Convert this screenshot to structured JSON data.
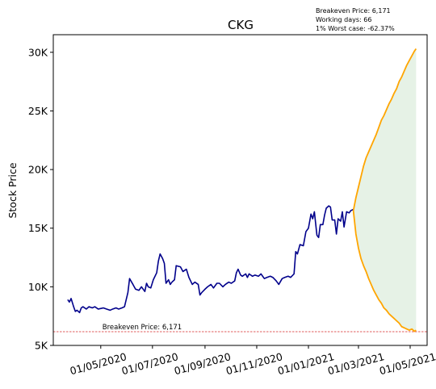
{
  "chart_data": {
    "type": "line",
    "title": "CKG",
    "xlabel": "",
    "ylabel": "Stock Price",
    "ylim": [
      5000,
      31500
    ],
    "y_ticks": [
      5000,
      10000,
      15000,
      20000,
      25000,
      30000
    ],
    "y_tick_labels": [
      "5K",
      "10K",
      "15K",
      "20K",
      "25K",
      "30K"
    ],
    "x_ticks": [
      "2020-05-01",
      "2020-07-01",
      "2020-09-01",
      "2020-11-01",
      "2021-01-01",
      "2021-03-01",
      "2021-05-01"
    ],
    "x_tick_labels": [
      "01/05/2020",
      "01/07/2020",
      "01/09/2020",
      "01/11/2020",
      "01/01/2021",
      "01/03/2021",
      "01/05/2021"
    ],
    "xlim": [
      "2020-03-06",
      "2021-05-21"
    ],
    "info_lines": [
      "Breakeven Price: 6,171",
      "Working days: 66",
      "1% Worst case: -62.37%"
    ],
    "breakeven": {
      "value": 6171,
      "label": "Breakeven Price: 6,171",
      "color": "#d62728"
    },
    "colors": {
      "history": "#00008b",
      "projection": "#ffa500",
      "band": "#e6f2e6"
    },
    "series": [
      {
        "role": "history",
        "points": [
          [
            "2020-03-23",
            8900
          ],
          [
            "2020-03-25",
            8700
          ],
          [
            "2020-03-27",
            9000
          ],
          [
            "2020-03-30",
            8300
          ],
          [
            "2020-04-01",
            7900
          ],
          [
            "2020-04-03",
            8000
          ],
          [
            "2020-04-06",
            7800
          ],
          [
            "2020-04-08",
            8200
          ],
          [
            "2020-04-10",
            8300
          ],
          [
            "2020-04-14",
            8100
          ],
          [
            "2020-04-17",
            8300
          ],
          [
            "2020-04-21",
            8200
          ],
          [
            "2020-04-24",
            8300
          ],
          [
            "2020-04-28",
            8100
          ],
          [
            "2020-05-04",
            8200
          ],
          [
            "2020-05-08",
            8100
          ],
          [
            "2020-05-12",
            8000
          ],
          [
            "2020-05-15",
            8100
          ],
          [
            "2020-05-19",
            8200
          ],
          [
            "2020-05-22",
            8100
          ],
          [
            "2020-05-26",
            8200
          ],
          [
            "2020-05-29",
            8300
          ],
          [
            "2020-06-02",
            9500
          ],
          [
            "2020-06-04",
            10700
          ],
          [
            "2020-06-08",
            10200
          ],
          [
            "2020-06-11",
            9800
          ],
          [
            "2020-06-15",
            9700
          ],
          [
            "2020-06-18",
            10000
          ],
          [
            "2020-06-22",
            9600
          ],
          [
            "2020-06-24",
            10300
          ],
          [
            "2020-06-26",
            10000
          ],
          [
            "2020-06-29",
            9900
          ],
          [
            "2020-07-02",
            10600
          ],
          [
            "2020-07-06",
            11200
          ],
          [
            "2020-07-08",
            12200
          ],
          [
            "2020-07-10",
            12800
          ],
          [
            "2020-07-13",
            12400
          ],
          [
            "2020-07-15",
            12000
          ],
          [
            "2020-07-17",
            10300
          ],
          [
            "2020-07-20",
            10600
          ],
          [
            "2020-07-22",
            10200
          ],
          [
            "2020-07-24",
            10400
          ],
          [
            "2020-07-27",
            10600
          ],
          [
            "2020-07-29",
            11800
          ],
          [
            "2020-08-03",
            11700
          ],
          [
            "2020-08-06",
            11300
          ],
          [
            "2020-08-10",
            11500
          ],
          [
            "2020-08-13",
            10800
          ],
          [
            "2020-08-17",
            10200
          ],
          [
            "2020-08-20",
            10400
          ],
          [
            "2020-08-24",
            10200
          ],
          [
            "2020-08-26",
            9300
          ],
          [
            "2020-08-28",
            9500
          ],
          [
            "2020-09-01",
            9800
          ],
          [
            "2020-09-04",
            10000
          ],
          [
            "2020-09-08",
            10200
          ],
          [
            "2020-09-11",
            9900
          ],
          [
            "2020-09-15",
            10300
          ],
          [
            "2020-09-18",
            10300
          ],
          [
            "2020-09-22",
            10000
          ],
          [
            "2020-09-25",
            10200
          ],
          [
            "2020-09-29",
            10400
          ],
          [
            "2020-10-02",
            10300
          ],
          [
            "2020-10-06",
            10500
          ],
          [
            "2020-10-08",
            11200
          ],
          [
            "2020-10-10",
            11500
          ],
          [
            "2020-10-13",
            11000
          ],
          [
            "2020-10-15",
            10900
          ],
          [
            "2020-10-19",
            11100
          ],
          [
            "2020-10-21",
            10800
          ],
          [
            "2020-10-23",
            11100
          ],
          [
            "2020-10-27",
            10900
          ],
          [
            "2020-10-30",
            11000
          ],
          [
            "2020-11-03",
            10900
          ],
          [
            "2020-11-06",
            11100
          ],
          [
            "2020-11-10",
            10700
          ],
          [
            "2020-11-13",
            10800
          ],
          [
            "2020-11-17",
            10900
          ],
          [
            "2020-11-20",
            10800
          ],
          [
            "2020-11-24",
            10500
          ],
          [
            "2020-11-27",
            10200
          ],
          [
            "2020-12-01",
            10700
          ],
          [
            "2020-12-04",
            10800
          ],
          [
            "2020-12-08",
            10900
          ],
          [
            "2020-12-11",
            10800
          ],
          [
            "2020-12-15",
            11100
          ],
          [
            "2020-12-17",
            13000
          ],
          [
            "2020-12-19",
            12800
          ],
          [
            "2020-12-22",
            13600
          ],
          [
            "2020-12-26",
            13500
          ],
          [
            "2020-12-29",
            14700
          ],
          [
            "2021-01-01",
            15000
          ],
          [
            "2021-01-04",
            16200
          ],
          [
            "2021-01-06",
            15800
          ],
          [
            "2021-01-08",
            16400
          ],
          [
            "2021-01-11",
            14400
          ],
          [
            "2021-01-13",
            14200
          ],
          [
            "2021-01-15",
            15300
          ],
          [
            "2021-01-18",
            15300
          ],
          [
            "2021-01-20",
            16100
          ],
          [
            "2021-01-22",
            16700
          ],
          [
            "2021-01-25",
            16900
          ],
          [
            "2021-01-27",
            16800
          ],
          [
            "2021-01-29",
            15700
          ],
          [
            "2021-02-01",
            15700
          ],
          [
            "2021-02-03",
            14500
          ],
          [
            "2021-02-05",
            15800
          ],
          [
            "2021-02-08",
            15600
          ],
          [
            "2021-02-10",
            16400
          ],
          [
            "2021-02-12",
            15100
          ],
          [
            "2021-02-15",
            16400
          ],
          [
            "2021-02-18",
            16300
          ],
          [
            "2021-02-20",
            16500
          ],
          [
            "2021-02-23",
            16600
          ]
        ]
      },
      {
        "role": "projection-upper",
        "points": [
          [
            "2021-02-23",
            16500
          ],
          [
            "2021-02-26",
            17600
          ],
          [
            "2021-03-01",
            18500
          ],
          [
            "2021-03-04",
            19400
          ],
          [
            "2021-03-07",
            20300
          ],
          [
            "2021-03-10",
            21000
          ],
          [
            "2021-03-13",
            21500
          ],
          [
            "2021-03-16",
            22000
          ],
          [
            "2021-03-19",
            22500
          ],
          [
            "2021-03-22",
            23000
          ],
          [
            "2021-03-25",
            23600
          ],
          [
            "2021-03-28",
            24200
          ],
          [
            "2021-03-31",
            24600
          ],
          [
            "2021-04-03",
            25100
          ],
          [
            "2021-04-06",
            25600
          ],
          [
            "2021-04-09",
            26000
          ],
          [
            "2021-04-12",
            26500
          ],
          [
            "2021-04-15",
            26900
          ],
          [
            "2021-04-18",
            27500
          ],
          [
            "2021-04-21",
            27900
          ],
          [
            "2021-04-24",
            28400
          ],
          [
            "2021-04-27",
            28900
          ],
          [
            "2021-04-30",
            29300
          ],
          [
            "2021-05-03",
            29700
          ],
          [
            "2021-05-06",
            30100
          ],
          [
            "2021-05-08",
            30300
          ]
        ]
      },
      {
        "role": "projection-lower",
        "points": [
          [
            "2021-02-23",
            16500
          ],
          [
            "2021-02-26",
            14500
          ],
          [
            "2021-03-01",
            13300
          ],
          [
            "2021-03-04",
            12400
          ],
          [
            "2021-03-07",
            11800
          ],
          [
            "2021-03-10",
            11300
          ],
          [
            "2021-03-13",
            10700
          ],
          [
            "2021-03-16",
            10200
          ],
          [
            "2021-03-19",
            9700
          ],
          [
            "2021-03-22",
            9300
          ],
          [
            "2021-03-25",
            8900
          ],
          [
            "2021-03-28",
            8600
          ],
          [
            "2021-03-31",
            8200
          ],
          [
            "2021-04-03",
            8000
          ],
          [
            "2021-04-06",
            7700
          ],
          [
            "2021-04-09",
            7500
          ],
          [
            "2021-04-12",
            7300
          ],
          [
            "2021-04-15",
            7100
          ],
          [
            "2021-04-18",
            6900
          ],
          [
            "2021-04-21",
            6600
          ],
          [
            "2021-04-24",
            6500
          ],
          [
            "2021-04-27",
            6400
          ],
          [
            "2021-04-30",
            6300
          ],
          [
            "2021-05-03",
            6400
          ],
          [
            "2021-05-06",
            6200
          ],
          [
            "2021-05-08",
            6300
          ]
        ]
      }
    ]
  }
}
